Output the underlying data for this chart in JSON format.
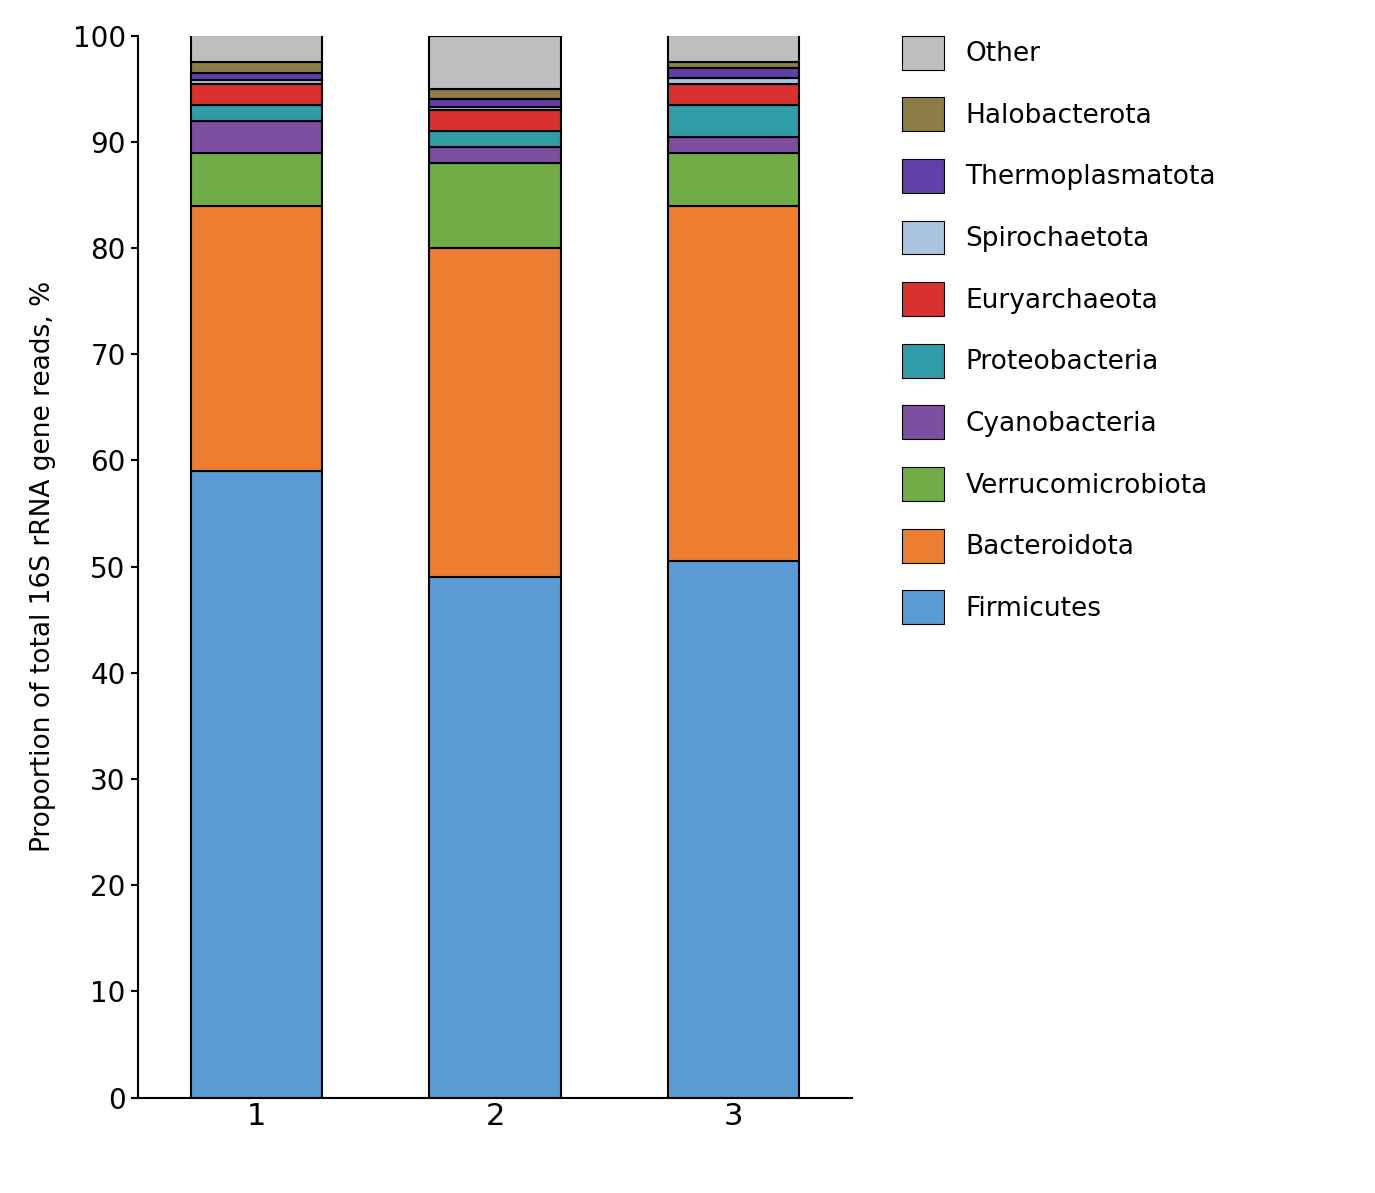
{
  "categories": [
    "1",
    "2",
    "3"
  ],
  "ylabel": "Proportion of total 16S rRNA gene reads, %",
  "ylim": [
    0,
    100
  ],
  "series": [
    {
      "label": "Firmicutes",
      "color": "#5B9BD5",
      "values": [
        59.0,
        49.0,
        50.5
      ]
    },
    {
      "label": "Bacteroidota",
      "color": "#ED7D31",
      "values": [
        25.0,
        31.0,
        33.5
      ]
    },
    {
      "label": "Verrucomicrobiota",
      "color": "#70AD47",
      "values": [
        5.0,
        8.0,
        5.0
      ]
    },
    {
      "label": "Cyanobacteria",
      "color": "#7B4EA0",
      "values": [
        3.0,
        1.5,
        1.5
      ]
    },
    {
      "label": "Proteobacteria",
      "color": "#2E9DA8",
      "values": [
        1.5,
        1.5,
        3.0
      ]
    },
    {
      "label": "Euryarchaeota",
      "color": "#D93030",
      "values": [
        2.0,
        2.0,
        2.0
      ]
    },
    {
      "label": "Spirochaetota",
      "color": "#A8C4E0",
      "values": [
        0.3,
        0.3,
        0.5
      ]
    },
    {
      "label": "Thermoplasmatota",
      "color": "#6040A8",
      "values": [
        0.7,
        0.7,
        1.0
      ]
    },
    {
      "label": "Halobacterota",
      "color": "#8B7D45",
      "values": [
        1.0,
        1.0,
        0.5
      ]
    },
    {
      "label": "Other",
      "color": "#BEBEBE",
      "values": [
        3.5,
        5.0,
        3.0
      ]
    }
  ],
  "legend_order": [
    9,
    8,
    7,
    6,
    5,
    4,
    3,
    2,
    1,
    0
  ],
  "bar_width": 0.55,
  "edge_color": "black",
  "edge_width": 1.5
}
